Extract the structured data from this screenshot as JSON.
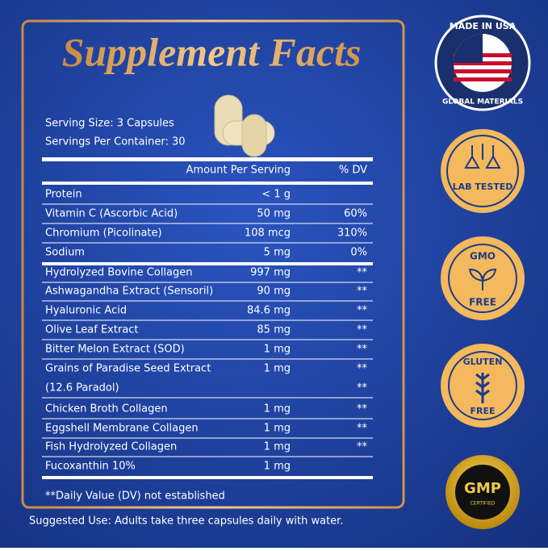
{
  "header": {
    "title": "Supplement Facts",
    "serving_size": "Serving Size: 3 Capsules",
    "servings_per_container": "Servings Per Container: 30"
  },
  "table": {
    "columns": [
      "Amount Per Serving",
      "% DV"
    ],
    "rows": [
      {
        "name": "Protein",
        "amount": "< 1 g"
      },
      {
        "name": "Vitamin C (Ascorbic Acid)",
        "amount": "50 mg",
        "dv": "60%"
      },
      {
        "name": "Chromium (Picolinate)",
        "amount": "108 mcg",
        "dv": "310%"
      },
      {
        "name": "Sodium",
        "amount": "5 mg",
        "dv": "0%"
      },
      {
        "name": "Hydrolyzed Bovine Collagen",
        "amount": "997 mg",
        "dv": "**"
      },
      {
        "name": "Ashwagandha Extract (Sensoril)",
        "amount": "90 mg",
        "dv": "**"
      },
      {
        "name": "Hyaluronic Acid",
        "amount": "84.6 mg",
        "dv": "**"
      },
      {
        "name": "Olive Leaf Extract",
        "amount": "85 mg",
        "dv": "**"
      },
      {
        "name": "Bitter Melon Extract (SOD)",
        "amount": "1 mg",
        "dv": "**"
      },
      {
        "name": "Grains of Paradise Seed Extract",
        "amount": "1 mg",
        "dv": "**"
      },
      {
        "name": "(12.6 Paradol)",
        "dv": "**"
      },
      {
        "name": "Chicken Broth Collagen",
        "amount": "1 mg",
        "dv": "**"
      },
      {
        "name": "Eggshell Membrane Collagen",
        "amount": "1 mg",
        "dv": "**"
      },
      {
        "name": "Fish Hydrolyzed Collagen",
        "amount": "1 mg",
        "dv": "**"
      },
      {
        "name": "Fucoxanthin 10%",
        "amount": "1 mg"
      }
    ]
  },
  "footnote": "**Daily Value (DV) not established",
  "suggested_use": "Suggested Use: Adults take three capsules daily with water.",
  "badges": {
    "usa_top": "MADE IN USA",
    "usa_bottom": "GLOBAL MATERIALS",
    "lab": "LAB TESTED",
    "gmo_top": "GMO",
    "gmo_bottom": "FREE",
    "gluten_top": "GLUTEN",
    "gluten_bottom": "FREE",
    "gmp": "GMP",
    "gmp_sub": "CERTIFIED"
  }
}
